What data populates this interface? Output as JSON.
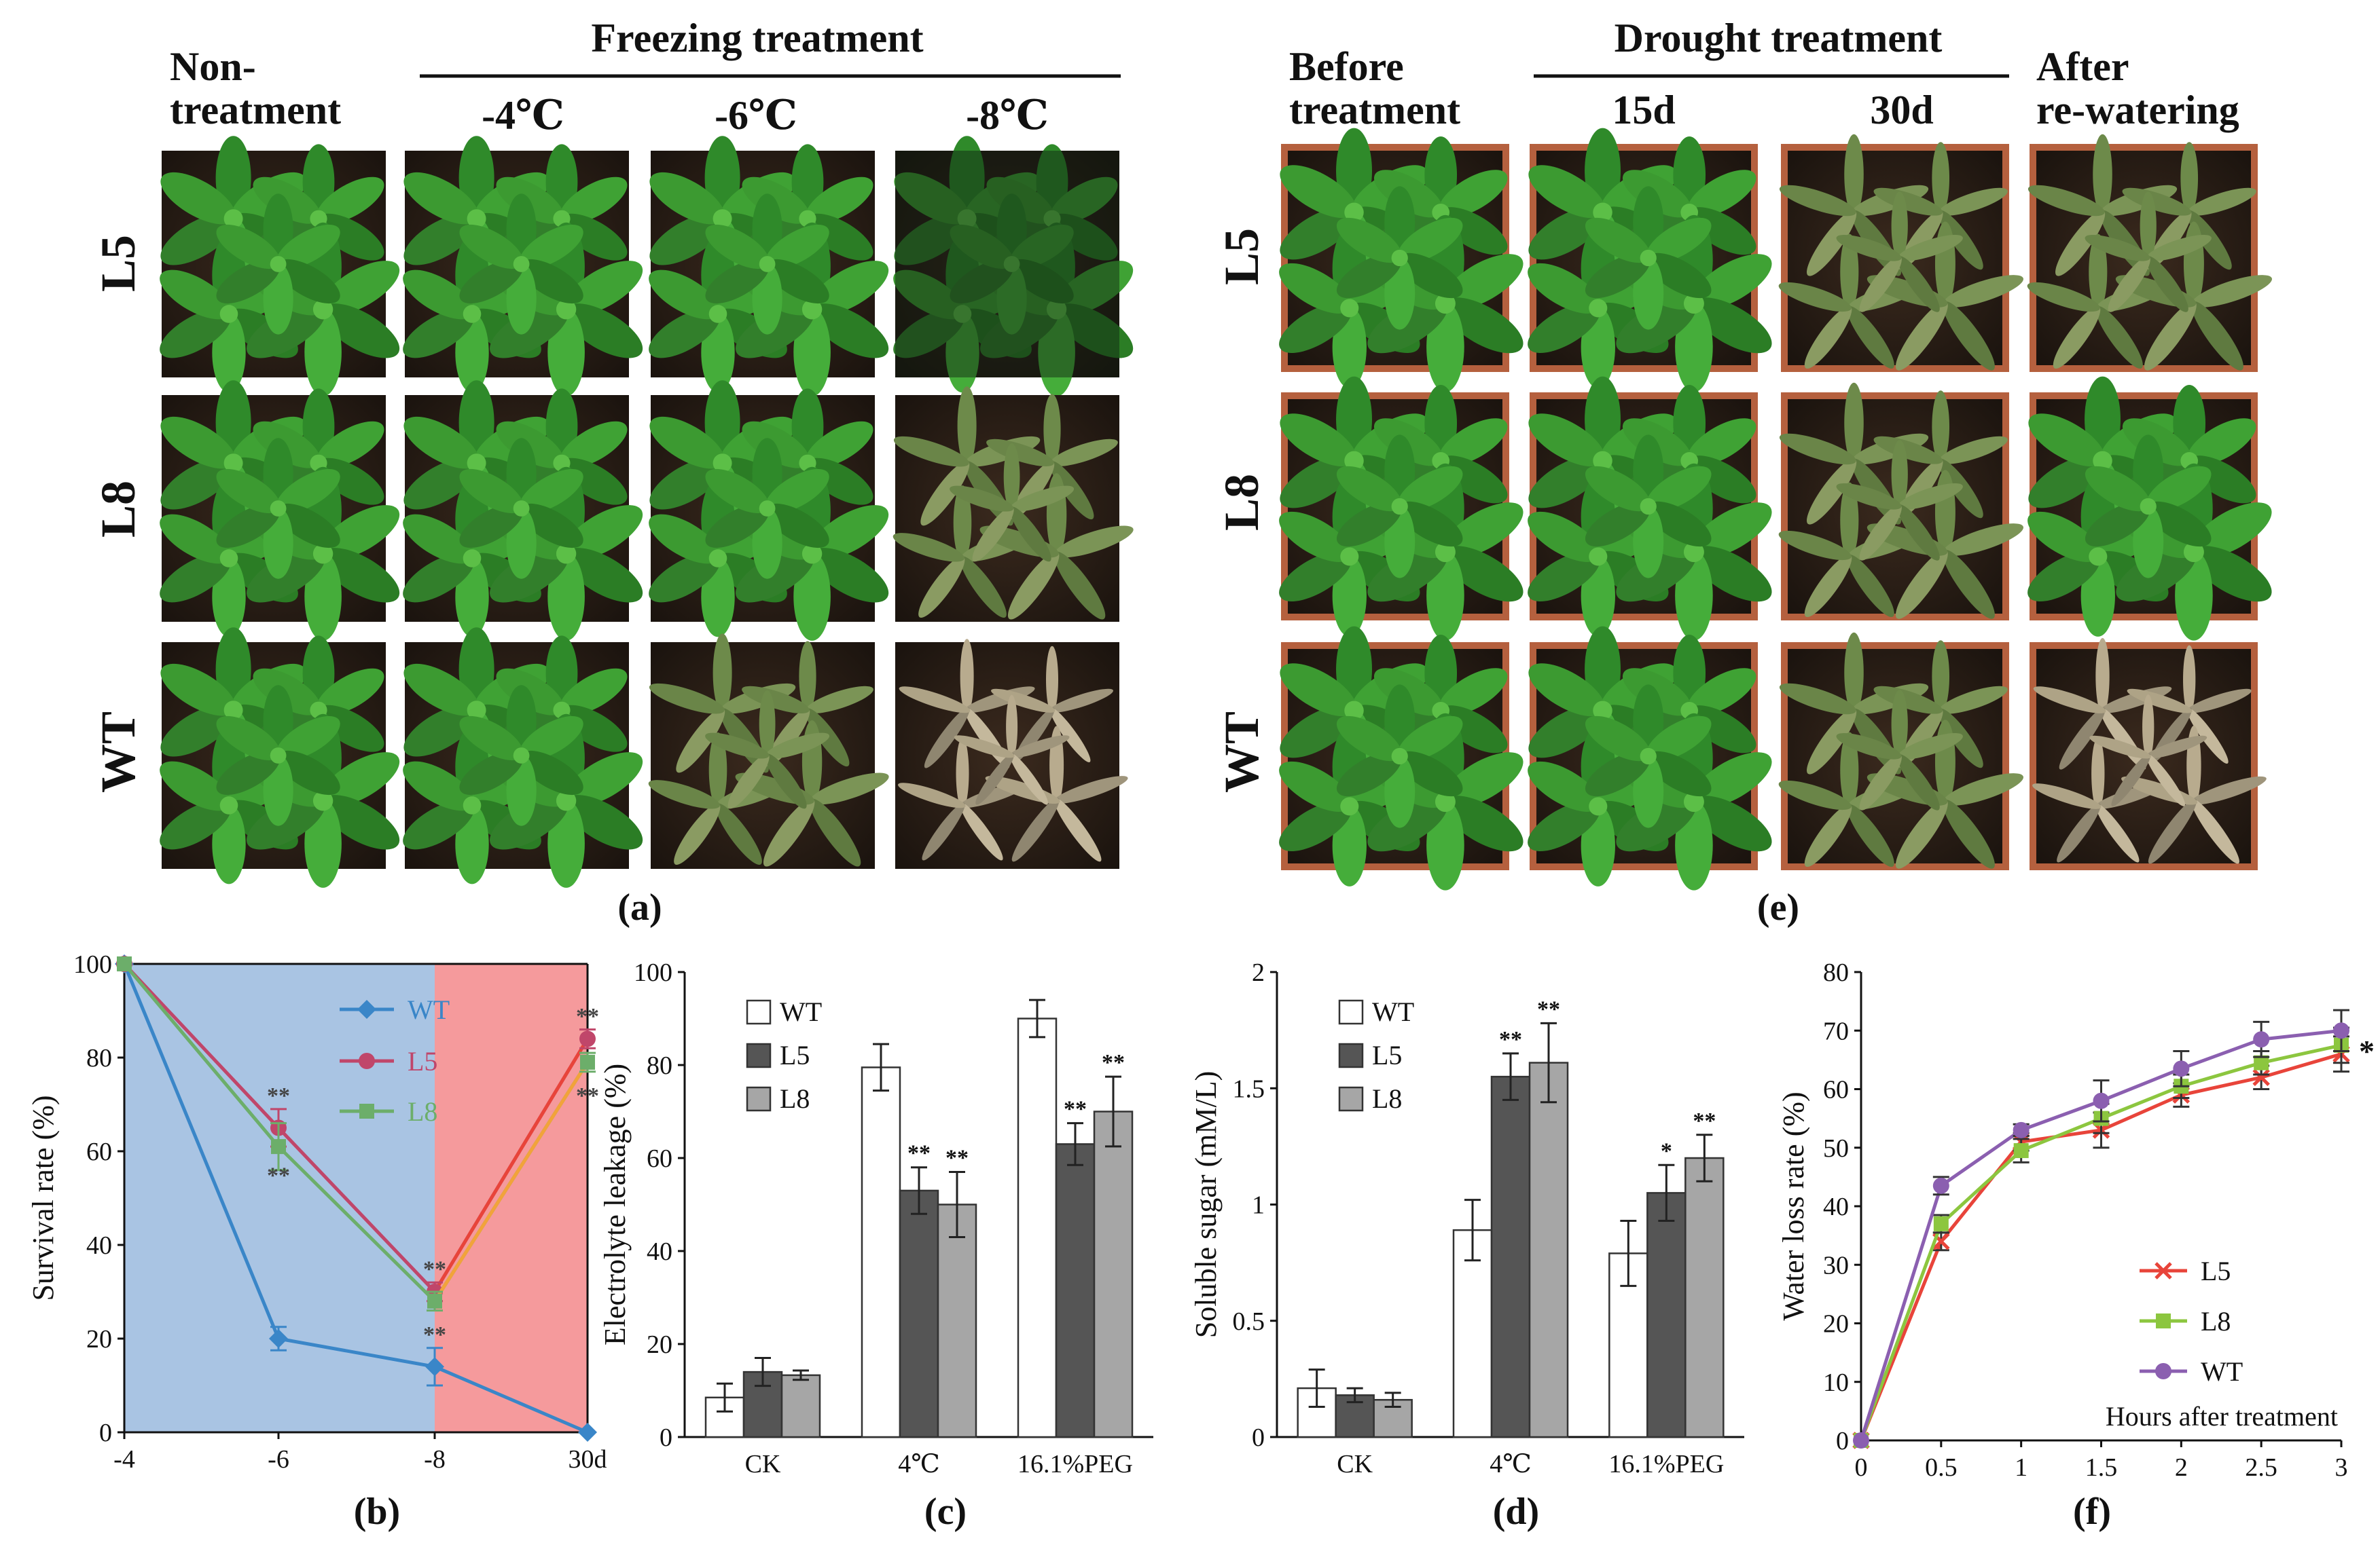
{
  "panel_a": {
    "header_col0_line1": "Non-",
    "header_col0_line2": "treatment",
    "group_title": "Freezing treatment",
    "columns": [
      "-4℃",
      "-6℃",
      "-8℃"
    ],
    "rows": [
      "L5",
      "L8",
      "WT"
    ],
    "label": "(a)"
  },
  "panel_e": {
    "header_col0_line1": "Before",
    "header_col0_line2": "treatment",
    "group_title": "Drought treatment",
    "columns": [
      "15d",
      "30d"
    ],
    "header_last_line1": "After",
    "header_last_line2": "re-watering",
    "rows": [
      "L5",
      "L8",
      "WT"
    ],
    "label": "(e)"
  },
  "colors": {
    "WT_b": "#3a86c8",
    "L5_b": "#c0466a",
    "L8_b": "#6cae6a",
    "bg_freeze": "#a9c4e3",
    "bg_rewater": "#f59a9c",
    "WT_bar": "#ffffff",
    "L5_bar": "#555555",
    "L8_bar": "#a6a6a6",
    "L5_f": "#e8443a",
    "L8_f": "#8cc63f",
    "WT_f": "#8b5fb0"
  },
  "chart_data": [
    {
      "id": "b",
      "type": "line",
      "label": "(b)",
      "ylabel": "Survival rate (%)",
      "xlabel": "",
      "categories": [
        "-4",
        "-6",
        "-8",
        "30d"
      ],
      "ylim": [
        0,
        100
      ],
      "yticks": [
        "0",
        "20",
        "40",
        "60",
        "80",
        "100"
      ],
      "series": [
        {
          "name": "WT",
          "values": [
            100,
            20,
            14,
            0
          ],
          "errors": [
            0,
            2.5,
            4,
            0
          ],
          "marker": "diamond"
        },
        {
          "name": "L5",
          "values": [
            100,
            65,
            30,
            84
          ],
          "errors": [
            0,
            4,
            2,
            2
          ],
          "marker": "circle"
        },
        {
          "name": "L8",
          "values": [
            100,
            61,
            28,
            79
          ],
          "errors": [
            0,
            5,
            2,
            2
          ],
          "marker": "square"
        }
      ],
      "annotations": [
        {
          "text": "**",
          "x": "-6",
          "y": 72
        },
        {
          "text": "**",
          "x": "-6",
          "y": 55
        },
        {
          "text": "**",
          "x": "-8",
          "y": 35
        },
        {
          "text": "**",
          "x": "-8",
          "y": 21
        },
        {
          "text": "**",
          "x": "30d",
          "y": 89
        },
        {
          "text": "**",
          "x": "30d",
          "y": 72
        }
      ],
      "legend_position": "top-right"
    },
    {
      "id": "c",
      "type": "bar",
      "label": "(c)",
      "ylabel": "Electrolyte leakage (%)",
      "categories": [
        "CK",
        "4℃",
        "16.1%PEG"
      ],
      "ylim": [
        0,
        100
      ],
      "yticks": [
        "0",
        "20",
        "40",
        "60",
        "80",
        "100"
      ],
      "series": [
        {
          "name": "WT",
          "values": [
            8.5,
            79.5,
            90
          ],
          "errors": [
            3,
            5,
            4
          ]
        },
        {
          "name": "L5",
          "values": [
            14,
            53,
            63
          ],
          "errors": [
            3,
            5,
            4.5
          ]
        },
        {
          "name": "L8",
          "values": [
            13.3,
            50,
            70
          ],
          "errors": [
            1,
            7,
            7.5
          ]
        }
      ],
      "stars": [
        [
          "",
          "**",
          "**"
        ],
        [
          "",
          "**",
          "**"
        ]
      ],
      "legend_position": "top-left"
    },
    {
      "id": "d",
      "type": "bar",
      "label": "(d)",
      "ylabel": "Soluble sugar (mM/L)",
      "categories": [
        "CK",
        "4℃",
        "16.1%PEG"
      ],
      "ylim": [
        0,
        2
      ],
      "yticks": [
        "0",
        "0.5",
        "1",
        "1.5",
        "2"
      ],
      "series": [
        {
          "name": "WT",
          "values": [
            0.21,
            0.89,
            0.79
          ],
          "errors": [
            0.08,
            0.13,
            0.14
          ]
        },
        {
          "name": "L5",
          "values": [
            0.18,
            1.55,
            1.05
          ],
          "errors": [
            0.03,
            0.1,
            0.12
          ]
        },
        {
          "name": "L8",
          "values": [
            0.16,
            1.61,
            1.2
          ],
          "errors": [
            0.03,
            0.17,
            0.1
          ]
        }
      ],
      "stars": [
        [
          "",
          "**",
          "*"
        ],
        [
          "",
          "**",
          "**"
        ]
      ],
      "legend_position": "top-left"
    },
    {
      "id": "f",
      "type": "line",
      "label": "(f)",
      "ylabel": "Water loss rate (%)",
      "xlabel": "Hours after treatment",
      "x": [
        0,
        0.5,
        1,
        1.5,
        2,
        2.5,
        3
      ],
      "xticks": [
        "0",
        "0.5",
        "1",
        "1.5",
        "2",
        "2.5",
        "3"
      ],
      "ylim": [
        0,
        80
      ],
      "yticks": [
        "0",
        "10",
        "20",
        "30",
        "40",
        "50",
        "60",
        "70",
        "80"
      ],
      "series": [
        {
          "name": "L5",
          "values": [
            0,
            34,
            51,
            53,
            59,
            62,
            66
          ],
          "errors": [
            0,
            1.5,
            1.5,
            3,
            2,
            2,
            3
          ],
          "marker": "x"
        },
        {
          "name": "L8",
          "values": [
            0,
            37,
            49.5,
            55,
            60.5,
            64.5,
            67.5
          ],
          "errors": [
            0,
            1.5,
            2,
            2.5,
            2,
            2,
            3
          ],
          "marker": "square"
        },
        {
          "name": "WT",
          "values": [
            0,
            43.5,
            53,
            58,
            63.5,
            68.5,
            70
          ],
          "errors": [
            0,
            1.5,
            1,
            3.5,
            3,
            3,
            3.5
          ],
          "marker": "circle"
        }
      ],
      "annotations": [
        {
          "text": "*",
          "x": 3,
          "y": 67
        }
      ],
      "legend_position": "bottom-right"
    }
  ]
}
